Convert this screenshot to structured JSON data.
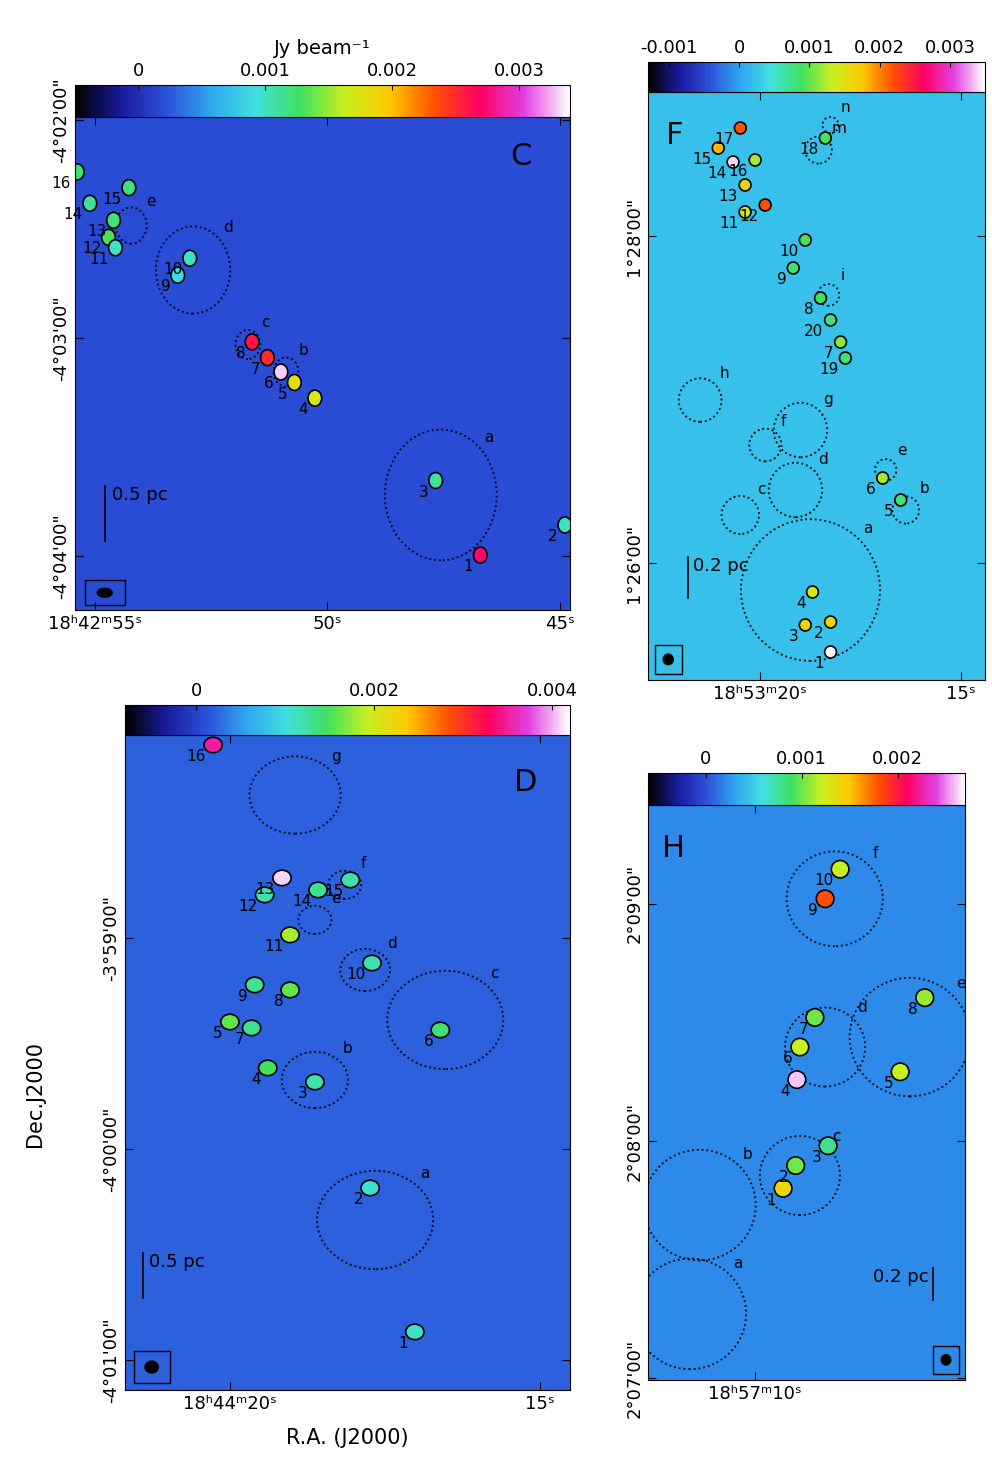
{
  "figure": {
    "xlabel": "R.A. (J2000)",
    "ylabel": "Dec.J2000"
  },
  "chart_data": [
    {
      "type": "image",
      "panel": "C",
      "colorbar": {
        "label": "Jy beam⁻¹",
        "range": [
          -0.0005,
          0.0034
        ],
        "ticks": [
          0,
          0.001,
          0.002,
          0.003
        ]
      },
      "background": 0.0002,
      "xlim": [
        55.43,
        44.78
      ],
      "xticks": [
        {
          "value": 55,
          "label": "18ʰ42ᵐ55ˢ"
        },
        {
          "value": 50,
          "label": "50ˢ"
        },
        {
          "value": 45,
          "label": "45ˢ"
        }
      ],
      "ylim": [
        -4.0708,
        -4.0331
      ],
      "yticks": [
        {
          "value": -4.03333,
          "label": "-4°02'00\""
        },
        {
          "value": -4.05,
          "label": "-4°03'00\""
        },
        {
          "value": -4.06667,
          "label": "-4°04'00\""
        }
      ],
      "scale_bar": {
        "label": "0.5 pc",
        "length_arcsec": 15
      },
      "cores": [
        {
          "label": "16",
          "x": 55.38,
          "y": -4.0373,
          "peak": 0.0012
        },
        {
          "label": "15",
          "x": 54.27,
          "y": -4.0385,
          "peak": 0.0012
        },
        {
          "label": "14",
          "x": 55.11,
          "y": -4.0397,
          "peak": 0.0011
        },
        {
          "label": "13",
          "x": 54.6,
          "y": -4.041,
          "peak": 0.0012
        },
        {
          "label": "12",
          "x": 54.71,
          "y": -4.0423,
          "peak": 0.0013
        },
        {
          "label": "11",
          "x": 54.56,
          "y": -4.0431,
          "peak": 0.001
        },
        {
          "label": "10",
          "x": 52.96,
          "y": -4.0439,
          "peak": 0.001
        },
        {
          "label": "9",
          "x": 53.22,
          "y": -4.0452,
          "peak": 0.0009
        },
        {
          "label": "8",
          "x": 51.62,
          "y": -4.0503,
          "peak": 0.0026
        },
        {
          "label": "7",
          "x": 51.29,
          "y": -4.0515,
          "peak": 0.0025
        },
        {
          "label": "6",
          "x": 51.0,
          "y": -4.0526,
          "peak": 0.0033
        },
        {
          "label": "5",
          "x": 50.71,
          "y": -4.0534,
          "peak": 0.0018
        },
        {
          "label": "4",
          "x": 50.27,
          "y": -4.0546,
          "peak": 0.0017
        },
        {
          "label": "3",
          "x": 47.67,
          "y": -4.0609,
          "peak": 0.0011
        },
        {
          "label": "1",
          "x": 46.71,
          "y": -4.0666,
          "peak": 0.0027
        },
        {
          "label": "2",
          "x": 44.89,
          "y": -4.0643,
          "peak": 0.001
        }
      ],
      "clumps": [
        {
          "label": "a",
          "x": 47.56,
          "y": -4.062,
          "r_arcsec": 18
        },
        {
          "label": "b",
          "x": 50.89,
          "y": -4.0526,
          "r_arcsec": 4
        },
        {
          "label": "c",
          "x": 51.71,
          "y": -4.0505,
          "r_arcsec": 4
        },
        {
          "label": "d",
          "x": 52.89,
          "y": -4.0448,
          "r_arcsec": 12
        },
        {
          "label": "e",
          "x": 54.22,
          "y": -4.0414,
          "r_arcsec": 5
        }
      ]
    },
    {
      "type": "image",
      "panel": "F",
      "colorbar": {
        "range": [
          -0.0013,
          0.0035
        ],
        "ticks": [
          -0.001,
          0,
          0.001,
          0.002,
          0.003
        ]
      },
      "background": 0.0002,
      "xlim": [
        22.8,
        14.4
      ],
      "xticks": [
        {
          "value": 20,
          "label": "18ʰ53ᵐ20ˢ"
        },
        {
          "value": 15,
          "label": "15ˢ"
        }
      ],
      "ylim": [
        1.42141,
        1.48135
      ],
      "yticks": [
        {
          "value": 1.43333,
          "label": "1°26'00\""
        },
        {
          "value": 1.46667,
          "label": "1°28'00\""
        }
      ],
      "scale_bar": {
        "label": "0.2 pc",
        "length_arcsec": 15
      },
      "cores": [
        {
          "label": "15",
          "x": 21.05,
          "y": 1.47564,
          "peak": 0.0018
        },
        {
          "label": "17",
          "x": 20.5,
          "y": 1.47768,
          "peak": 0.0022
        },
        {
          "label": "16",
          "x": 20.13,
          "y": 1.47442,
          "peak": 0.0012
        },
        {
          "label": "14",
          "x": 20.68,
          "y": 1.47421,
          "peak": 0.0034
        },
        {
          "label": "13",
          "x": 20.38,
          "y": 1.47187,
          "peak": 0.0016
        },
        {
          "label": "12",
          "x": 19.88,
          "y": 1.46983,
          "peak": 0.0022
        },
        {
          "label": "11",
          "x": 20.38,
          "y": 1.46912,
          "peak": 0.0014
        },
        {
          "label": "18",
          "x": 18.38,
          "y": 1.47666,
          "peak": 0.0009
        },
        {
          "label": "10",
          "x": 18.88,
          "y": 1.46626,
          "peak": 0.0009
        },
        {
          "label": "9",
          "x": 19.18,
          "y": 1.46341,
          "peak": 0.0008
        },
        {
          "label": "8",
          "x": 18.5,
          "y": 1.46035,
          "peak": 0.0009
        },
        {
          "label": "20",
          "x": 18.25,
          "y": 1.45811,
          "peak": 0.0008
        },
        {
          "label": "7",
          "x": 18.0,
          "y": 1.45586,
          "peak": 0.0011
        },
        {
          "label": "19",
          "x": 17.88,
          "y": 1.45423,
          "peak": 0.0008
        },
        {
          "label": "6",
          "x": 16.95,
          "y": 1.442,
          "peak": 0.0012
        },
        {
          "label": "5",
          "x": 16.5,
          "y": 1.43976,
          "peak": 0.0008
        },
        {
          "label": "4",
          "x": 18.7,
          "y": 1.43038,
          "peak": 0.0014
        },
        {
          "label": "3",
          "x": 18.88,
          "y": 1.42702,
          "peak": 0.0016
        },
        {
          "label": "2",
          "x": 18.25,
          "y": 1.42732,
          "peak": 0.0016
        },
        {
          "label": "1",
          "x": 18.25,
          "y": 1.42426,
          "peak": 0.0035
        }
      ],
      "clumps": [
        {
          "label": "a",
          "x": 18.75,
          "y": 1.43058,
          "r_arcsec": 26
        },
        {
          "label": "b",
          "x": 16.375,
          "y": 1.43874,
          "r_arcsec": 5
        },
        {
          "label": "c",
          "x": 20.5,
          "y": 1.43823,
          "r_arcsec": 7
        },
        {
          "label": "d",
          "x": 19.125,
          "y": 1.44078,
          "r_arcsec": 10
        },
        {
          "label": "e",
          "x": 16.875,
          "y": 1.44282,
          "r_arcsec": 4
        },
        {
          "label": "f",
          "x": 19.875,
          "y": 1.44537,
          "r_arcsec": 6
        },
        {
          "label": "g",
          "x": 19.0,
          "y": 1.44689,
          "r_arcsec": 10
        },
        {
          "label": "h",
          "x": 21.5,
          "y": 1.44995,
          "r_arcsec": 8
        },
        {
          "label": "i",
          "x": 18.3,
          "y": 1.46066,
          "r_arcsec": 4
        },
        {
          "label": "m",
          "x": 18.55,
          "y": 1.47544,
          "r_arcsec": 5
        },
        {
          "label": "n",
          "x": 18.25,
          "y": 1.47798,
          "r_arcsec": 3
        }
      ]
    },
    {
      "type": "image",
      "panel": "D",
      "colorbar": {
        "range": [
          -0.0008,
          0.0042
        ],
        "ticks": [
          0,
          0.002,
          0.004
        ]
      },
      "background": 0.0002,
      "xlim": [
        21.69,
        14.52
      ],
      "xticks": [
        {
          "value": 20,
          "label": "18ʰ44ᵐ20ˢ"
        },
        {
          "value": 15,
          "label": "15ˢ"
        }
      ],
      "ylim": [
        -4.01904,
        -3.9673
      ],
      "yticks": [
        {
          "value": -3.98333,
          "label": "-3°59'00\""
        },
        {
          "value": -4.0,
          "label": "-4°00'00\""
        },
        {
          "value": -4.01667,
          "label": "-4°01'00\""
        }
      ],
      "scale_bar": {
        "label": "0.5 pc",
        "length_arcsec": 13
      },
      "cores": [
        {
          "label": "16",
          "x": 20.27,
          "y": -3.96809,
          "peak": 0.0035
        },
        {
          "label": "13",
          "x": 19.16,
          "y": -3.97859,
          "peak": 0.0041
        },
        {
          "label": "14",
          "x": 18.58,
          "y": -3.97954,
          "peak": 0.0013
        },
        {
          "label": "15",
          "x": 18.06,
          "y": -3.97875,
          "peak": 0.0012
        },
        {
          "label": "12",
          "x": 19.44,
          "y": -3.97993,
          "peak": 0.0012
        },
        {
          "label": "11",
          "x": 19.03,
          "y": -3.98309,
          "peak": 0.0018
        },
        {
          "label": "10",
          "x": 17.71,
          "y": -3.98531,
          "peak": 0.0012
        },
        {
          "label": "9",
          "x": 19.6,
          "y": -3.98704,
          "peak": 0.0013
        },
        {
          "label": "8",
          "x": 19.03,
          "y": -3.98744,
          "peak": 0.0016
        },
        {
          "label": "5",
          "x": 20.0,
          "y": -3.98997,
          "peak": 0.0016
        },
        {
          "label": "7",
          "x": 19.65,
          "y": -3.99044,
          "peak": 0.0013
        },
        {
          "label": "4",
          "x": 19.39,
          "y": -3.9936,
          "peak": 0.0015
        },
        {
          "label": "3",
          "x": 18.63,
          "y": -3.99471,
          "peak": 0.0012
        },
        {
          "label": "6",
          "x": 16.61,
          "y": -3.9906,
          "peak": 0.0014
        },
        {
          "label": "2",
          "x": 17.74,
          "y": -4.00308,
          "peak": 0.0011
        },
        {
          "label": "1",
          "x": 17.02,
          "y": -4.01445,
          "peak": 0.0011
        }
      ],
      "clumps": [
        {
          "label": "g",
          "x": 18.95,
          "y": -3.97204,
          "r_arcsec": 11
        },
        {
          "label": "f",
          "x": 18.15,
          "y": -3.97914,
          "r_arcsec": 4
        },
        {
          "label": "e",
          "x": 18.63,
          "y": -3.98191,
          "r_arcsec": 4
        },
        {
          "label": "d",
          "x": 17.82,
          "y": -3.98586,
          "r_arcsec": 6
        },
        {
          "label": "c",
          "x": 16.53,
          "y": -3.98981,
          "r_arcsec": 14
        },
        {
          "label": "b",
          "x": 18.63,
          "y": -3.99455,
          "r_arcsec": 8
        },
        {
          "label": "a",
          "x": 17.66,
          "y": -4.00561,
          "r_arcsec": 14
        }
      ]
    },
    {
      "type": "image",
      "panel": "H",
      "colorbar": {
        "range": [
          -0.0006,
          0.0027
        ],
        "ticks": [
          0,
          0.001,
          0.002
        ]
      },
      "background": 0.0002,
      "xlim": [
        11.78,
        6.5
      ],
      "xticks": [
        {
          "value": 10,
          "label": "18ʰ57ᵐ10ˢ"
        }
      ],
      "ylim": [
        2.11653,
        2.15694
      ],
      "yticks": [
        {
          "value": 2.11667,
          "label": "2°07'00\""
        },
        {
          "value": 2.13333,
          "label": "2°08'00\""
        },
        {
          "value": 2.15,
          "label": "2°09'00\""
        }
      ],
      "scale_bar": {
        "label": "0.2 pc",
        "length_arcsec": 8
      },
      "cores": [
        {
          "label": "10",
          "x": 8.58,
          "y": 2.15243,
          "peak": 0.0012
        },
        {
          "label": "9",
          "x": 8.83,
          "y": 2.15035,
          "peak": 0.0018
        },
        {
          "label": "8",
          "x": 7.17,
          "y": 2.1434,
          "peak": 0.0011
        },
        {
          "label": "7",
          "x": 9.0,
          "y": 2.14201,
          "peak": 0.001
        },
        {
          "label": "6",
          "x": 9.25,
          "y": 2.13993,
          "peak": 0.0012
        },
        {
          "label": "4",
          "x": 9.3,
          "y": 2.13764,
          "peak": 0.0026
        },
        {
          "label": "5",
          "x": 7.58,
          "y": 2.13819,
          "peak": 0.0012
        },
        {
          "label": "3",
          "x": 8.78,
          "y": 2.13299,
          "peak": 0.0008
        },
        {
          "label": "2",
          "x": 9.32,
          "y": 2.1316,
          "peak": 0.001
        },
        {
          "label": "1",
          "x": 9.53,
          "y": 2.13,
          "peak": 0.0014
        }
      ],
      "clumps": [
        {
          "label": "f",
          "x": 8.67,
          "y": 2.15035,
          "r_arcsec": 12
        },
        {
          "label": "e",
          "x": 7.42,
          "y": 2.14063,
          "r_arcsec": 15
        },
        {
          "label": "d",
          "x": 8.83,
          "y": 2.13993,
          "r_arcsec": 10
        },
        {
          "label": "c",
          "x": 9.25,
          "y": 2.1309,
          "r_arcsec": 10
        },
        {
          "label": "b",
          "x": 10.92,
          "y": 2.12882,
          "r_arcsec": 14
        },
        {
          "label": "a",
          "x": 11.08,
          "y": 2.12118,
          "r_arcsec": 14
        }
      ]
    }
  ]
}
